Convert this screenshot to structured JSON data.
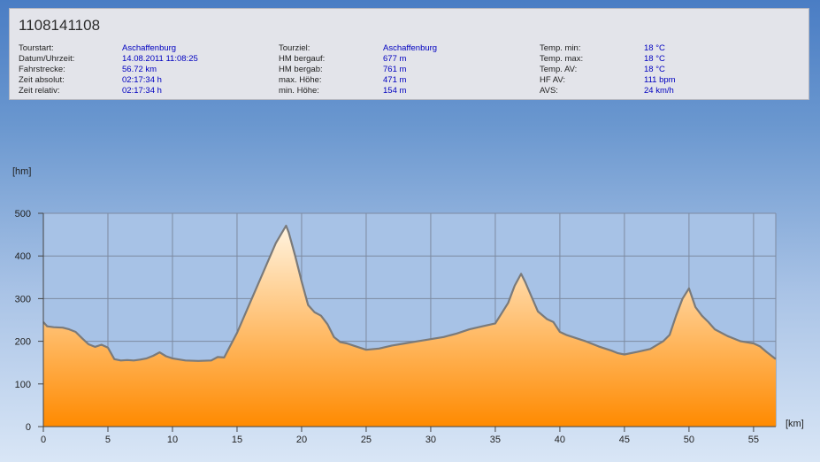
{
  "title": "1108141108",
  "info": [
    [
      {
        "label": "Tourstart:",
        "value": "Aschaffenburg"
      },
      {
        "label": "Datum/Uhrzeit:",
        "value": "14.08.2011 11:08:25"
      },
      {
        "label": "Fahrstrecke:",
        "value": "56.72 km"
      },
      {
        "label": "Zeit absolut:",
        "value": "02:17:34 h"
      },
      {
        "label": "Zeit relativ:",
        "value": "02:17:34 h"
      }
    ],
    [
      {
        "label": "Tourziel:",
        "value": "Aschaffenburg"
      },
      {
        "label": "HM bergauf:",
        "value": "677 m"
      },
      {
        "label": "HM bergab:",
        "value": "761 m"
      },
      {
        "label": "max. Höhe:",
        "value": "471 m"
      },
      {
        "label": "min. Höhe:",
        "value": "154 m"
      }
    ],
    [
      {
        "label": "Temp. min:",
        "value": "18 °C"
      },
      {
        "label": "Temp. max:",
        "value": "18 °C"
      },
      {
        "label": "Temp. AV:",
        "value": "18 °C"
      },
      {
        "label": "HF AV:",
        "value": "111 bpm"
      },
      {
        "label": "AVS:",
        "value": "24 km/h"
      }
    ]
  ],
  "chart_data": {
    "type": "area",
    "ylabel": "[hm]",
    "xlabel": "[km]",
    "xlim": [
      0,
      56.72
    ],
    "ylim": [
      0,
      500
    ],
    "xticks": [
      0,
      5,
      10,
      15,
      20,
      25,
      30,
      35,
      40,
      45,
      50,
      55
    ],
    "yticks": [
      0,
      100,
      200,
      300,
      400,
      500
    ],
    "grid": true,
    "colors": {
      "line": "#7a7a7a",
      "fill_top": "#fff4e0",
      "fill_bottom": "#ff8a00",
      "plot_bg": "#a7c2e6",
      "grid": "#7d8aa0"
    },
    "x": [
      0,
      0.3,
      0.8,
      1.5,
      2.0,
      2.5,
      3.0,
      3.5,
      4.0,
      4.5,
      5.0,
      5.5,
      6.0,
      6.5,
      7.0,
      7.5,
      8.0,
      8.5,
      9.0,
      9.5,
      10.0,
      11.0,
      12.0,
      13.0,
      13.5,
      14.0,
      15.0,
      16.0,
      17.0,
      18.0,
      18.8,
      19.0,
      19.5,
      20.0,
      20.5,
      21.0,
      21.5,
      22.0,
      22.5,
      23.0,
      23.5,
      24.0,
      25.0,
      26.0,
      27.0,
      28.0,
      29.0,
      30.0,
      31.0,
      32.0,
      33.0,
      34.0,
      35.0,
      36.0,
      36.5,
      37.0,
      37.3,
      37.8,
      38.3,
      39.0,
      39.5,
      40.0,
      40.5,
      41.0,
      42.0,
      43.0,
      44.0,
      44.5,
      45.0,
      46.0,
      47.0,
      48.0,
      48.5,
      49.0,
      49.5,
      50.0,
      50.5,
      51.0,
      51.5,
      52.0,
      53.0,
      54.0,
      55.0,
      55.5,
      56.0,
      56.72
    ],
    "y": [
      245,
      235,
      233,
      232,
      228,
      222,
      207,
      193,
      187,
      192,
      185,
      158,
      155,
      156,
      155,
      157,
      160,
      166,
      174,
      165,
      160,
      155,
      154,
      155,
      163,
      162,
      220,
      290,
      360,
      430,
      471,
      455,
      400,
      340,
      285,
      268,
      260,
      240,
      210,
      198,
      195,
      190,
      180,
      183,
      190,
      195,
      200,
      205,
      210,
      218,
      228,
      235,
      242,
      290,
      330,
      358,
      340,
      305,
      270,
      252,
      245,
      222,
      215,
      210,
      200,
      188,
      178,
      172,
      169,
      175,
      182,
      200,
      215,
      260,
      300,
      324,
      280,
      260,
      245,
      228,
      212,
      200,
      195,
      188,
      175,
      158
    ]
  }
}
